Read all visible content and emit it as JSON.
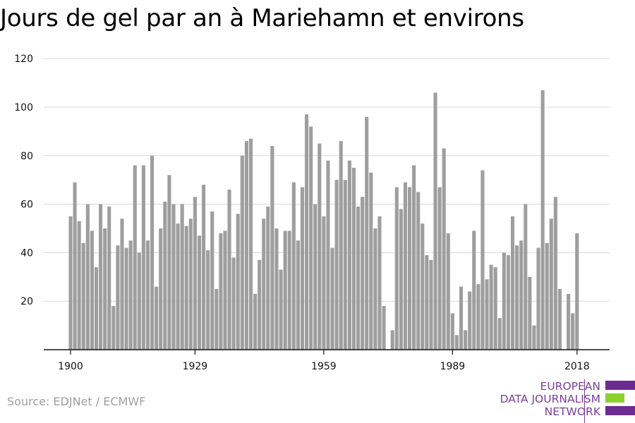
{
  "title": "Jours de gel par an à Mariehamn et environs",
  "source": "Source: EDJNet / ECMWF",
  "logo": {
    "lines": [
      "EUROPEAN",
      "DATA JOURNALISM",
      "NETWORK"
    ],
    "bar_colors": [
      "#6b2c91",
      "#8cd12f",
      "#6b2c91"
    ]
  },
  "chart_data": {
    "type": "bar",
    "title": "Jours de gel par an à Mariehamn et environs",
    "xlabel": "",
    "ylabel": "",
    "x_start": 1900,
    "x_end": 2018,
    "x_ticks": [
      1900,
      1929,
      1959,
      1989,
      2018
    ],
    "y_ticks": [
      20,
      40,
      60,
      80,
      100,
      120
    ],
    "ylim": [
      0,
      120
    ],
    "grid": true,
    "bar_color": "#9e9e9e",
    "grid_color": "#d9d9d9",
    "values": [
      55,
      69,
      53,
      44,
      60,
      49,
      34,
      60,
      50,
      59,
      18,
      43,
      54,
      42,
      45,
      76,
      40,
      76,
      45,
      80,
      26,
      50,
      61,
      72,
      60,
      52,
      60,
      51,
      54,
      63,
      47,
      68,
      41,
      57,
      25,
      48,
      49,
      66,
      38,
      56,
      80,
      86,
      87,
      23,
      37,
      54,
      59,
      84,
      50,
      33,
      49,
      49,
      69,
      45,
      67,
      97,
      92,
      60,
      85,
      55,
      78,
      42,
      70,
      86,
      70,
      78,
      75,
      59,
      63,
      96,
      73,
      50,
      55,
      18,
      0,
      8,
      67,
      58,
      69,
      67,
      76,
      65,
      52,
      39,
      37,
      106,
      67,
      83,
      48,
      15,
      6,
      26,
      8,
      24,
      49,
      27,
      74,
      29,
      35,
      34,
      13,
      40,
      39,
      55,
      43,
      45,
      60,
      30,
      10,
      42,
      107,
      44,
      54,
      63,
      25,
      0,
      23,
      15,
      48
    ]
  }
}
